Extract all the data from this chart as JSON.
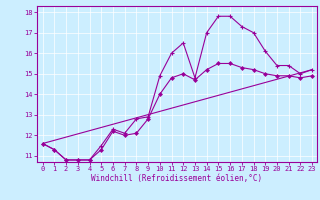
{
  "xlabel": "Windchill (Refroidissement éolien,°C)",
  "bg_color": "#cceeff",
  "line_color": "#990099",
  "xlim": [
    -0.5,
    23.4
  ],
  "ylim": [
    10.7,
    18.3
  ],
  "xticks": [
    0,
    1,
    2,
    3,
    4,
    5,
    6,
    7,
    8,
    9,
    10,
    11,
    12,
    13,
    14,
    15,
    16,
    17,
    18,
    19,
    20,
    21,
    22,
    23
  ],
  "yticks": [
    11,
    12,
    13,
    14,
    15,
    16,
    17,
    18
  ],
  "series1_x": [
    0,
    1,
    2,
    3,
    4,
    5,
    6,
    7,
    8,
    9,
    10,
    11,
    12,
    13,
    14,
    15,
    16,
    17,
    18,
    19,
    20,
    21,
    22,
    23
  ],
  "series1_y": [
    11.6,
    11.3,
    10.8,
    10.8,
    10.8,
    11.5,
    12.3,
    12.1,
    12.8,
    12.9,
    14.9,
    16.0,
    16.5,
    14.8,
    17.0,
    17.8,
    17.8,
    17.3,
    17.0,
    16.1,
    15.4,
    15.4,
    15.0,
    15.2
  ],
  "series2_x": [
    0,
    1,
    2,
    3,
    4,
    5,
    6,
    7,
    8,
    9,
    10,
    11,
    12,
    13,
    14,
    15,
    16,
    17,
    18,
    19,
    20,
    21,
    22,
    23
  ],
  "series2_y": [
    11.6,
    11.3,
    10.8,
    10.8,
    10.8,
    11.3,
    12.2,
    12.0,
    12.1,
    12.8,
    14.0,
    14.8,
    15.0,
    14.7,
    15.2,
    15.5,
    15.5,
    15.3,
    15.2,
    15.0,
    14.9,
    14.9,
    14.8,
    14.9
  ],
  "series3_x": [
    0,
    23
  ],
  "series3_y": [
    11.6,
    15.2
  ],
  "tick_fontsize": 5.0,
  "xlabel_fontsize": 5.5
}
